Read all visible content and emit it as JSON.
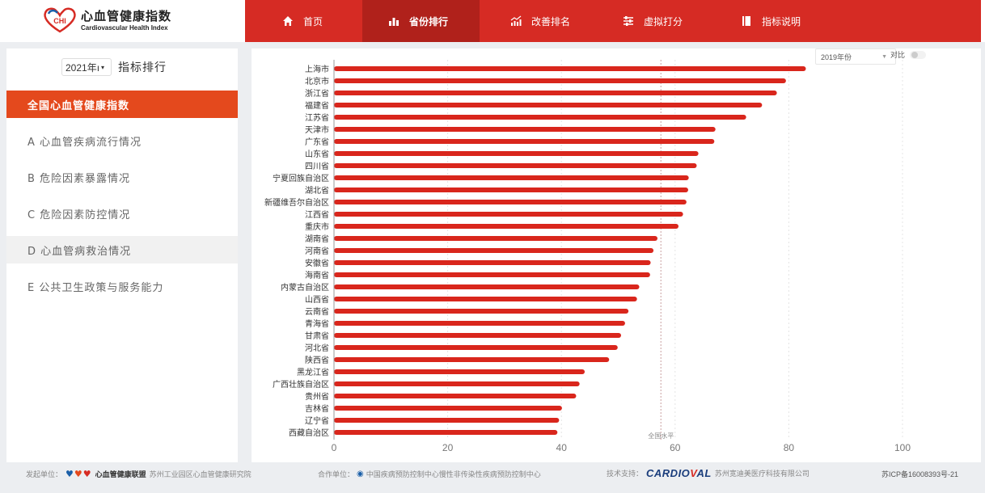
{
  "header": {
    "logo_badge": "CHI",
    "logo_title": "心血管健康指数",
    "logo_subtitle": "Cardiovascular Health Index",
    "nav": [
      {
        "label": "首页",
        "icon": "home-icon",
        "active": false
      },
      {
        "label": "省份排行",
        "icon": "bar-chart-icon",
        "active": true
      },
      {
        "label": "改善排名",
        "icon": "trend-chart-icon",
        "active": false
      },
      {
        "label": "虚拟打分",
        "icon": "sliders-icon",
        "active": false
      },
      {
        "label": "指标说明",
        "icon": "book-icon",
        "active": false
      }
    ]
  },
  "sidebar": {
    "year_value": "2021年ı",
    "title": "指标排行",
    "items": [
      {
        "label": "全国心血管健康指数",
        "state": "active"
      },
      {
        "label": "A 心血管疾病流行情况",
        "state": "normal"
      },
      {
        "label": "B 危险因素暴露情况",
        "state": "normal"
      },
      {
        "label": "C 危险因素防控情况",
        "state": "normal"
      },
      {
        "label": "D 心血管病救治情况",
        "state": "hover"
      },
      {
        "label": "E 公共卫生政策与服务能力",
        "state": "normal"
      }
    ]
  },
  "chart_controls": {
    "compare_year": "2019年份",
    "compare_label": "对比"
  },
  "colors": {
    "nav_red": "#d62b24",
    "nav_active": "#b0211b",
    "sidebar_active": "#e4491d",
    "bar": "#d9261c"
  },
  "chart_data": {
    "type": "bar",
    "orientation": "horizontal",
    "categories": [
      "上海市",
      "北京市",
      "浙江省",
      "福建省",
      "江苏省",
      "天津市",
      "广东省",
      "山东省",
      "四川省",
      "宁夏回族自治区",
      "湖北省",
      "新疆维吾尔自治区",
      "江西省",
      "重庆市",
      "湖南省",
      "河南省",
      "安徽省",
      "海南省",
      "内蒙古自治区",
      "山西省",
      "云南省",
      "青海省",
      "甘肃省",
      "河北省",
      "陕西省",
      "黑龙江省",
      "广西壮族自治区",
      "贵州省",
      "吉林省",
      "辽宁省",
      "西藏自治区"
    ],
    "values": [
      83.0,
      79.5,
      77.9,
      75.3,
      72.5,
      67.1,
      66.9,
      64.1,
      63.8,
      62.4,
      62.3,
      62.0,
      61.4,
      60.6,
      56.9,
      56.2,
      55.7,
      55.6,
      53.7,
      53.3,
      51.8,
      51.2,
      50.5,
      49.9,
      48.4,
      44.1,
      43.2,
      42.6,
      40.1,
      39.6,
      39.3
    ],
    "xlim": [
      0,
      100
    ],
    "xticks": [
      0,
      20,
      40,
      60,
      80,
      100
    ],
    "reference_line": {
      "value": 57.5,
      "label": "全国水平"
    },
    "grid": "vertical-dashed"
  },
  "footer": {
    "sponsor_label": "发起单位：",
    "sponsor_brand": "心血管健康联盟",
    "sponsor_org": "苏州工业园区心血管健康研究院",
    "partner_label": "合作单位：",
    "partner_org": "中国疾病预防控制中心慢性非传染性疾病预防控制中心",
    "tech_label": "技术支持：",
    "tech_brand_a": "CARDIO",
    "tech_brand_b": "V",
    "tech_brand_c": "AL",
    "tech_org": "苏州宽迪美医疗科技有限公司",
    "icp": "苏ICP备16008393号-21"
  }
}
